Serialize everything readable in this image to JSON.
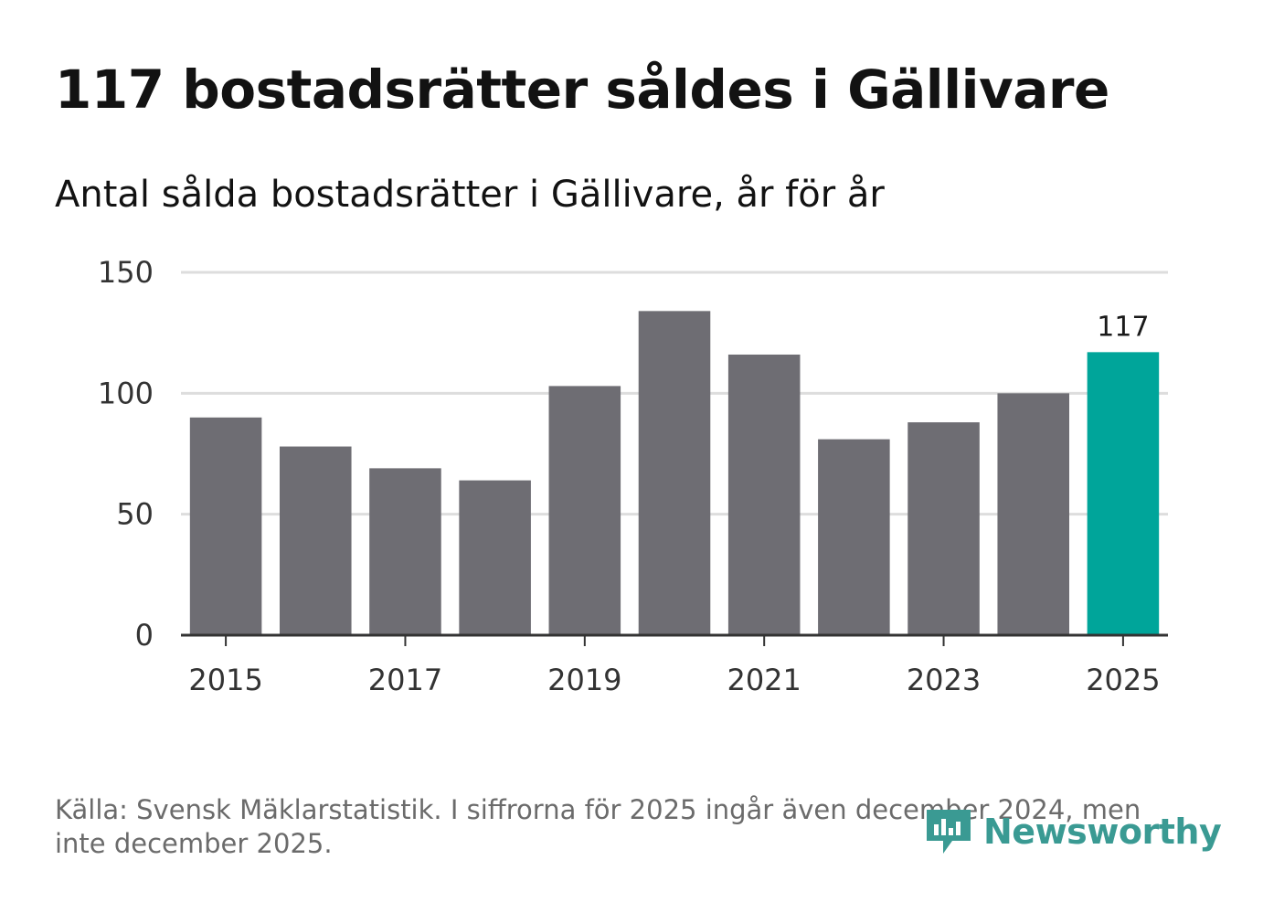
{
  "header": {
    "title": "117 bostadsrätter såldes i Gällivare",
    "subtitle": "Antal sålda bostadsrätter i Gällivare, år för år"
  },
  "footer": {
    "source": "Källa: Svensk Mäklarstatistik. I siffrorna för 2025 ingår även december 2024, men inte december 2025.",
    "brand": "Newsworthy"
  },
  "colors": {
    "bar": "#6e6d73",
    "highlight": "#00a59a",
    "grid": "#dddddd",
    "axis": "#333333",
    "brand": "#3a9a93"
  },
  "chart_data": {
    "type": "bar",
    "title": "117 bostadsrätter såldes i Gällivare",
    "subtitle": "Antal sålda bostadsrätter i Gällivare, år för år",
    "categories": [
      "2015",
      "2016",
      "2017",
      "2018",
      "2019",
      "2020",
      "2021",
      "2022",
      "2023",
      "2024",
      "2025"
    ],
    "values": [
      90,
      78,
      69,
      64,
      103,
      134,
      116,
      81,
      88,
      100,
      117
    ],
    "highlight_index": 10,
    "highlight_label": "117",
    "x_tick_labels": [
      "2015",
      "2017",
      "2019",
      "2021",
      "2023",
      "2025"
    ],
    "y_ticks": [
      0,
      50,
      100,
      150
    ],
    "ylim": [
      0,
      150
    ],
    "grid": true,
    "xlabel": "",
    "ylabel": ""
  }
}
